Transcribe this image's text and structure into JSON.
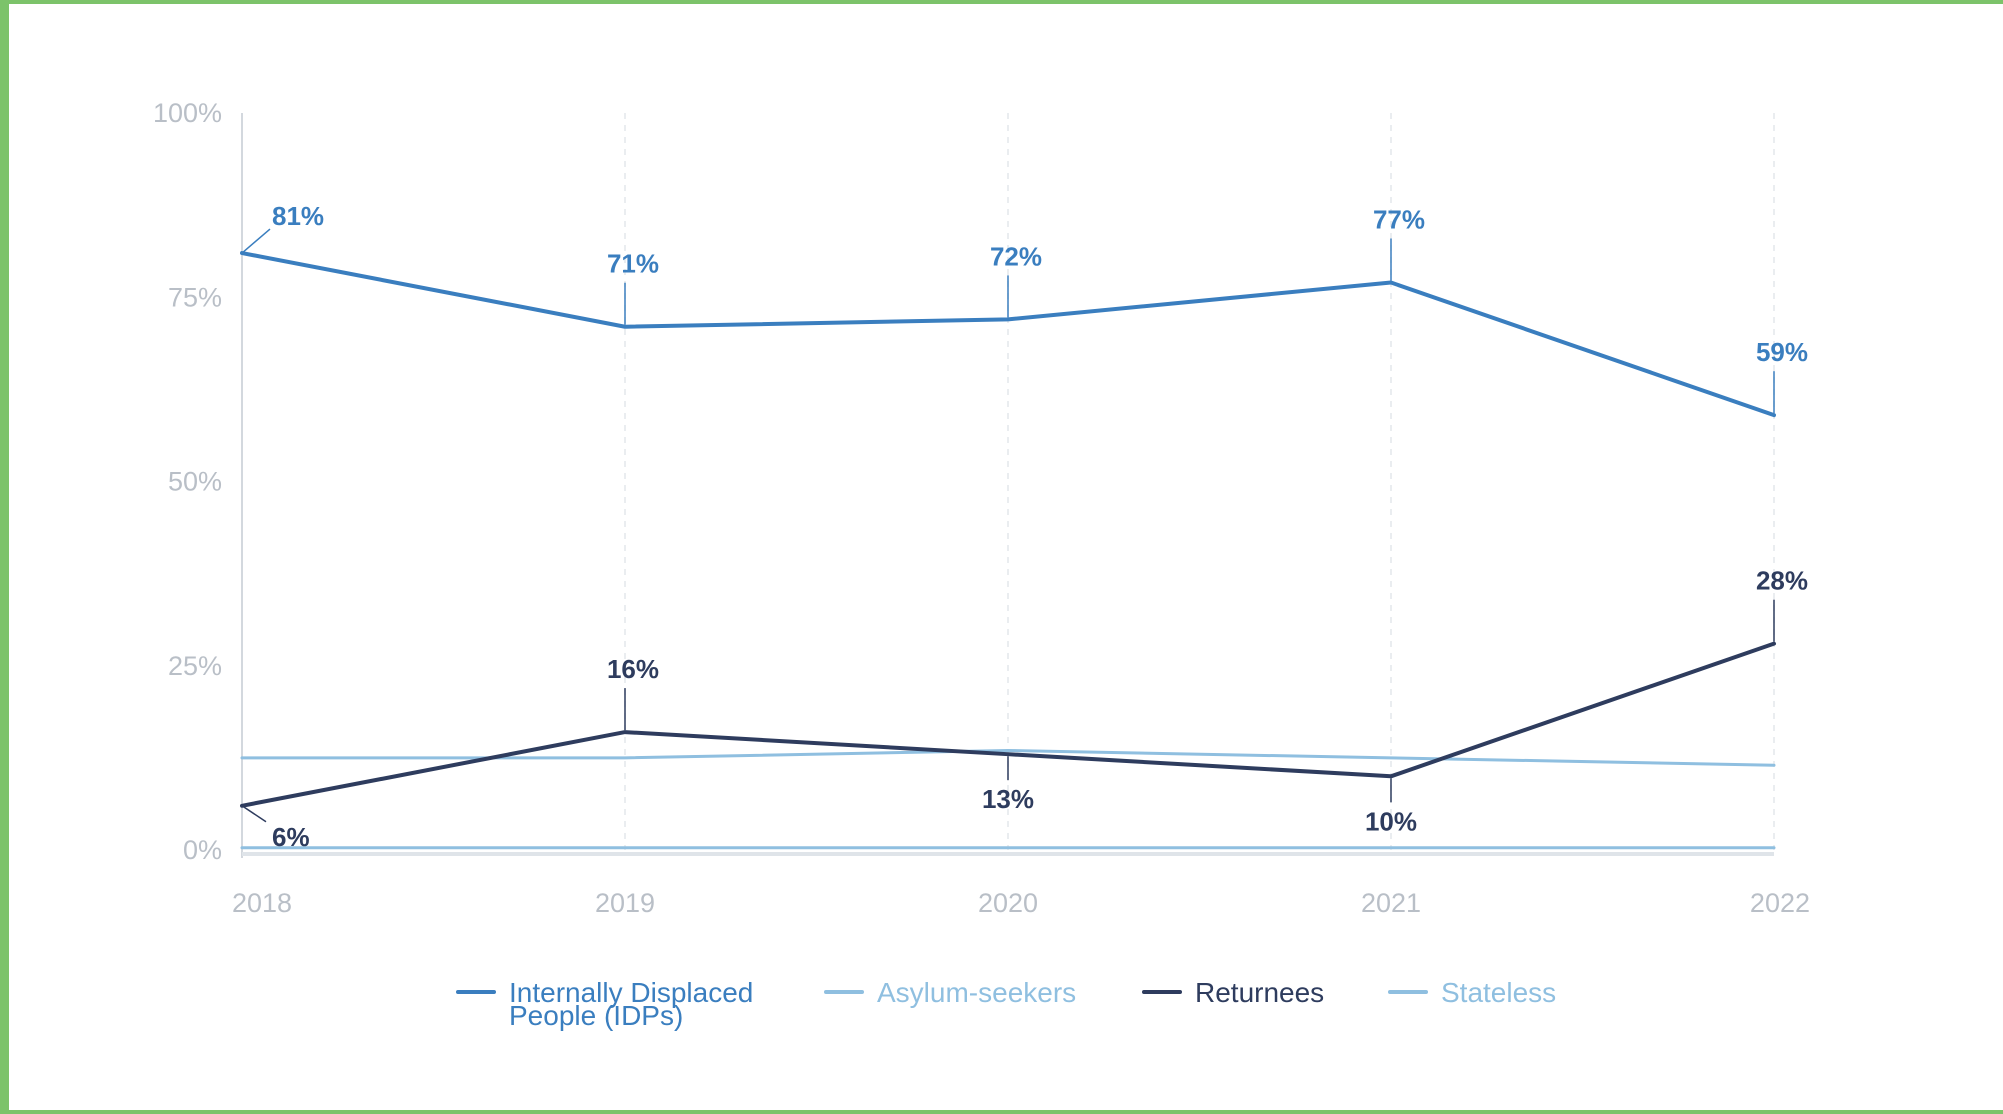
{
  "chart_data": {
    "type": "line",
    "title": "",
    "xlabel": "",
    "ylabel": "",
    "x": [
      "2018",
      "2019",
      "2020",
      "2021",
      "2022"
    ],
    "ylim": [
      0,
      100
    ],
    "y_ticks": [
      "0%",
      "25%",
      "50%",
      "75%",
      "100%"
    ],
    "grid": "vertical dashed lines at each year",
    "legend_position": "bottom",
    "series": [
      {
        "name_lines": [
          "Internally Displaced",
          "People (IDPs)"
        ],
        "values": [
          81,
          71,
          72,
          77,
          59
        ],
        "labels": [
          "81%",
          "71%",
          "72%",
          "77%",
          "59%"
        ],
        "color": "#3a7ebf"
      },
      {
        "name_lines": [
          "Asylum-seekers"
        ],
        "values": [
          12.5,
          12.5,
          13.5,
          12.5,
          11.5
        ],
        "labels": [],
        "color": "#8fbfe0"
      },
      {
        "name_lines": [
          "Returnees"
        ],
        "values": [
          6,
          16,
          13,
          10,
          28
        ],
        "labels": [
          "6%",
          "16%",
          "13%",
          "10%",
          "28%"
        ],
        "color": "#2e3c5e"
      },
      {
        "name_lines": [
          "Stateless"
        ],
        "values": [
          0.3,
          0.3,
          0.3,
          0.3,
          0.3
        ],
        "labels": [],
        "color": "#8fbfe0"
      }
    ]
  }
}
